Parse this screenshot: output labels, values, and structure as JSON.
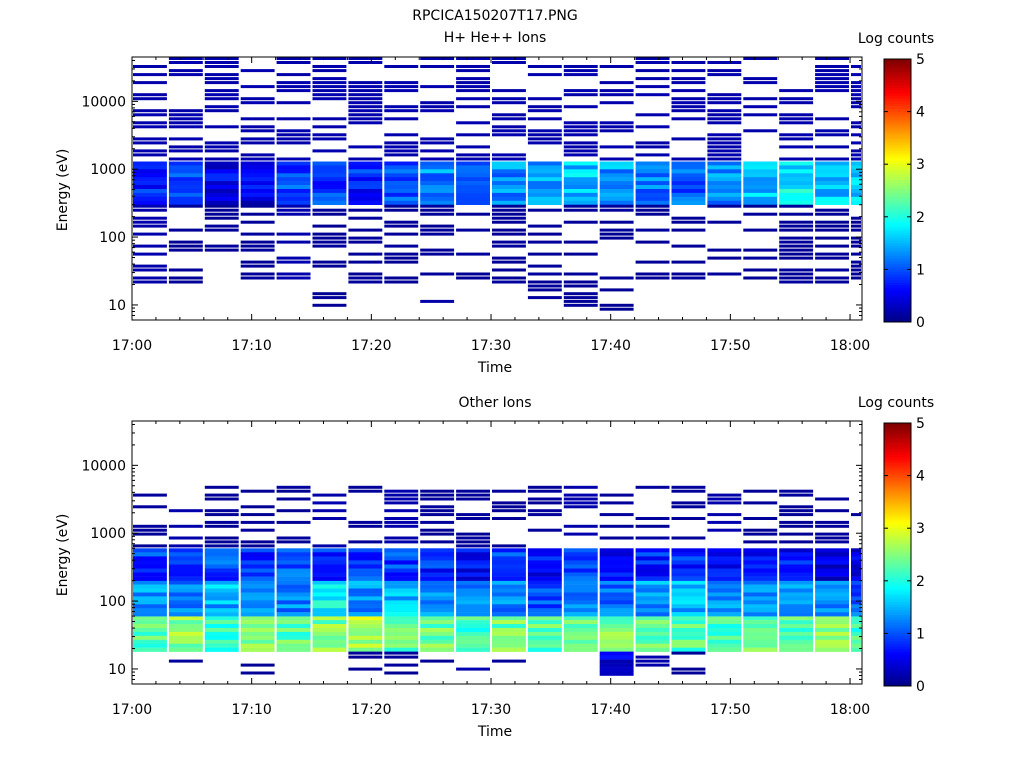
{
  "figure": {
    "title": "RPCICA150207T17.PNG"
  },
  "colors": {
    "background": "#ffffff",
    "axis": "#000000",
    "colormap": "jet"
  },
  "chart_data": [
    {
      "type": "heatmap",
      "title": "H+ He++ Ions",
      "xlabel": "Time",
      "ylabel": "Energy (eV)",
      "xlim": [
        "17:00",
        "18:01"
      ],
      "ylim": [
        6,
        45000
      ],
      "yscale": "log",
      "xticks": [
        "17:00",
        "17:10",
        "17:20",
        "17:30",
        "17:40",
        "17:50",
        "18:00"
      ],
      "yticks": [
        "10",
        "100",
        "1000",
        "10000"
      ],
      "colorbar": {
        "label": "Log counts",
        "min": 0,
        "max": 5,
        "ticks": [
          "0",
          "1",
          "2",
          "3",
          "4",
          "5"
        ]
      },
      "grid": false,
      "time_bins": [
        "17:00",
        "17:03",
        "17:06",
        "17:09",
        "17:12",
        "17:15",
        "17:18",
        "17:21",
        "17:24",
        "17:27",
        "17:30",
        "17:33",
        "17:36",
        "17:39",
        "17:42",
        "17:45",
        "17:48",
        "17:51",
        "17:54",
        "17:57",
        "18:00"
      ],
      "energy_band_eV": [
        {
          "range": [
            300,
            1300
          ],
          "log_counts": [
            0.8,
            0.9,
            0.6,
            0.5,
            1.0,
            0.9,
            0.8,
            1.1,
            1.3,
            1.2,
            1.3,
            1.4,
            1.6,
            1.4,
            1.2,
            1.1,
            1.3,
            1.6,
            1.8,
            1.6,
            1.7
          ]
        },
        {
          "range": [
            1300,
            45000
          ],
          "log_counts": [
            0.2,
            0.2,
            0.2,
            0.2,
            0.2,
            0.2,
            0.2,
            0.2,
            0.2,
            0.2,
            0.2,
            0.2,
            0.2,
            0.2,
            0.2,
            0.2,
            0.2,
            0.2,
            0.2,
            0.2,
            0.2
          ]
        },
        {
          "range": [
            20,
            300
          ],
          "log_counts": [
            0.2,
            0.1,
            0.1,
            0.1,
            0.2,
            0.1,
            0.1,
            0.1,
            0.1,
            0.1,
            0.1,
            0.1,
            0.1,
            0.1,
            0.1,
            0.1,
            0.1,
            0.1,
            0.1,
            0.1,
            0.1
          ]
        },
        {
          "range": [
            8,
            20
          ],
          "log_counts": [
            0,
            0,
            0,
            0,
            0,
            0.1,
            0,
            0,
            0.2,
            0,
            0,
            0.1,
            0.1,
            0.1,
            0,
            0,
            0,
            0,
            0,
            0,
            0
          ]
        }
      ]
    },
    {
      "type": "heatmap",
      "title": "Other Ions",
      "xlabel": "Time",
      "ylabel": "Energy (eV)",
      "xlim": [
        "17:00",
        "18:01"
      ],
      "ylim": [
        6,
        45000
      ],
      "yscale": "log",
      "xticks": [
        "17:00",
        "17:10",
        "17:20",
        "17:30",
        "17:40",
        "17:50",
        "18:00"
      ],
      "yticks": [
        "10",
        "100",
        "1000",
        "10000"
      ],
      "colorbar": {
        "label": "Log counts",
        "min": 0,
        "max": 5,
        "ticks": [
          "0",
          "1",
          "2",
          "3",
          "4",
          "5"
        ]
      },
      "grid": false,
      "time_bins": [
        "17:00",
        "17:03",
        "17:06",
        "17:09",
        "17:12",
        "17:15",
        "17:18",
        "17:21",
        "17:24",
        "17:27",
        "17:30",
        "17:33",
        "17:36",
        "17:39",
        "17:42",
        "17:45",
        "17:48",
        "17:51",
        "17:54",
        "17:57",
        "18:00"
      ],
      "energy_band_eV": [
        {
          "range": [
            18,
            60
          ],
          "log_counts": [
            2.3,
            2.6,
            2.2,
            2.6,
            2.3,
            2.5,
            2.7,
            2.3,
            2.4,
            2.2,
            2.4,
            2.3,
            2.3,
            2.5,
            2.4,
            2.3,
            2.2,
            2.4,
            2.3,
            2.6,
            2.2
          ]
        },
        {
          "range": [
            60,
            200
          ],
          "log_counts": [
            1.4,
            1.3,
            1.5,
            1.5,
            1.3,
            1.8,
            1.3,
            1.6,
            1.4,
            1.2,
            1.2,
            1.0,
            1.3,
            1.2,
            1.4,
            1.5,
            1.3,
            1.4,
            1.3,
            1.2,
            1.1
          ]
        },
        {
          "range": [
            200,
            600
          ],
          "log_counts": [
            0.9,
            0.8,
            1.0,
            0.9,
            1.0,
            0.9,
            0.9,
            0.9,
            0.8,
            0.6,
            0.9,
            0.7,
            0.9,
            0.7,
            0.8,
            0.8,
            0.7,
            0.6,
            0.7,
            0.5,
            0.5
          ]
        },
        {
          "range": [
            600,
            5000
          ],
          "log_counts": [
            0.1,
            0.2,
            0.1,
            0.1,
            0.1,
            0.2,
            0.1,
            0.2,
            0.1,
            0.1,
            0.1,
            0.1,
            0.2,
            0.1,
            0.1,
            0.1,
            0.2,
            0.1,
            0.1,
            0.1,
            0.1
          ]
        },
        {
          "range": [
            8,
            18
          ],
          "log_counts": [
            0,
            0.1,
            0,
            0.1,
            0,
            0,
            0.1,
            0.1,
            0.1,
            0.2,
            0.1,
            0,
            0,
            0.4,
            0.2,
            0.1,
            0,
            0,
            0,
            0,
            0
          ]
        }
      ]
    }
  ]
}
